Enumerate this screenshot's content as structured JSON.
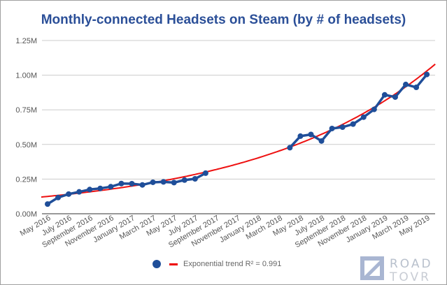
{
  "chart_data": {
    "type": "line",
    "title": "Monthly-connected Headsets on Steam (by # of headsets)",
    "xlabel": "",
    "ylabel": "",
    "x_tick_labels": [
      "May 2016",
      "July 2016",
      "September 2016",
      "November 2016",
      "January 2017",
      "March 2017",
      "May 2017",
      "July 2017",
      "September 2017",
      "November 2017",
      "January 2018",
      "March 2018",
      "May 2018",
      "July 2018",
      "September 2018",
      "November 2018",
      "January 2019",
      "March 2019",
      "May 2019"
    ],
    "y_tick_labels": [
      "0.00M",
      "0.25M",
      "0.50M",
      "0.75M",
      "1.00M",
      "1.25M"
    ],
    "ylim": [
      0,
      1.25
    ],
    "y_unit": "M",
    "grid": "horizontal",
    "legend_position": "bottom",
    "series": [
      {
        "type": "line-markers",
        "color": "#1f4e99",
        "segments": [
          {
            "x": [
              "May 2016",
              "June 2016",
              "July 2016",
              "August 2016",
              "September 2016",
              "October 2016",
              "November 2016",
              "December 2016",
              "January 2017",
              "February 2017",
              "March 2017",
              "April 2017",
              "May 2017",
              "June 2017",
              "July 2017",
              "August 2017"
            ],
            "y": [
              0.07,
              0.117,
              0.142,
              0.158,
              0.175,
              0.183,
              0.195,
              0.218,
              0.217,
              0.208,
              0.227,
              0.23,
              0.225,
              0.243,
              0.252,
              0.293
            ]
          },
          {
            "x": [
              "April 2018",
              "May 2018",
              "June 2018",
              "July 2018",
              "August 2018",
              "September 2018",
              "October 2018",
              "November 2018",
              "December 2018",
              "January 2019",
              "February 2019",
              "March 2019",
              "April 2019",
              "May 2019"
            ],
            "y": [
              0.477,
              0.56,
              0.572,
              0.525,
              0.615,
              0.625,
              0.647,
              0.697,
              0.753,
              0.858,
              0.842,
              0.933,
              0.912,
              1.005
            ]
          }
        ]
      },
      {
        "name": "Exponential trend R² = 0.991",
        "type": "trend",
        "color": "#ee1111",
        "model": "exponential",
        "start": {
          "x": "May 2016",
          "y": 0.125
        },
        "end": {
          "x": "May 2019",
          "y": 1.03
        }
      }
    ]
  },
  "legend": {
    "trend_label": "Exponential trend R² = 0.991"
  },
  "watermark": {
    "text": "ROAD TOVR"
  }
}
